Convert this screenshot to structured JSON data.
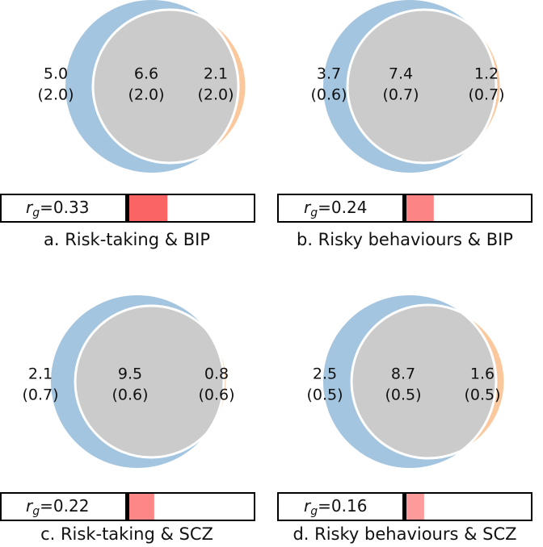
{
  "colors": {
    "trait": "#a4c5e0",
    "disorder": "#fbc79d",
    "overlap": "#cbcbcb",
    "outline": "#ffffff",
    "bar_border": "#000000",
    "bar_background": "#ffffff",
    "text": "#111111"
  },
  "rg_prefix": "r",
  "rg_subscript": "g",
  "chart_data": [
    {
      "type": "venn",
      "caption": "a. Risk-taking & BIP",
      "regions": {
        "trait_only": {
          "value": "5.0",
          "se": "(2.0)"
        },
        "shared": {
          "value": "6.6",
          "se": "(2.0)"
        },
        "disorder_only": {
          "value": "2.1",
          "se": "(2.0)"
        }
      },
      "rg_value": 0.33,
      "rg_text": "=0.33",
      "bar_color": "#fb6464"
    },
    {
      "type": "venn",
      "caption": "b. Risky behaviours & BIP",
      "regions": {
        "trait_only": {
          "value": "3.7",
          "se": "(0.6)"
        },
        "shared": {
          "value": "7.4",
          "se": "(0.7)"
        },
        "disorder_only": {
          "value": "1.2",
          "se": "(0.7)"
        }
      },
      "rg_value": 0.24,
      "rg_text": "=0.24",
      "bar_color": "#fd8484"
    },
    {
      "type": "venn",
      "caption": "c. Risk-taking & SCZ",
      "regions": {
        "trait_only": {
          "value": "2.1",
          "se": "(0.7)"
        },
        "shared": {
          "value": "9.5",
          "se": "(0.6)"
        },
        "disorder_only": {
          "value": "0.8",
          "se": "(0.6)"
        }
      },
      "rg_value": 0.22,
      "rg_text": "=0.22",
      "bar_color": "#fd8686"
    },
    {
      "type": "venn",
      "caption": "d. Risky behaviours & SCZ",
      "regions": {
        "trait_only": {
          "value": "2.5",
          "se": "(0.5)"
        },
        "shared": {
          "value": "8.7",
          "se": "(0.5)"
        },
        "disorder_only": {
          "value": "1.6",
          "se": "(0.5)"
        }
      },
      "rg_value": 0.16,
      "rg_text": "=0.16",
      "bar_color": "#fd9a9a"
    }
  ]
}
